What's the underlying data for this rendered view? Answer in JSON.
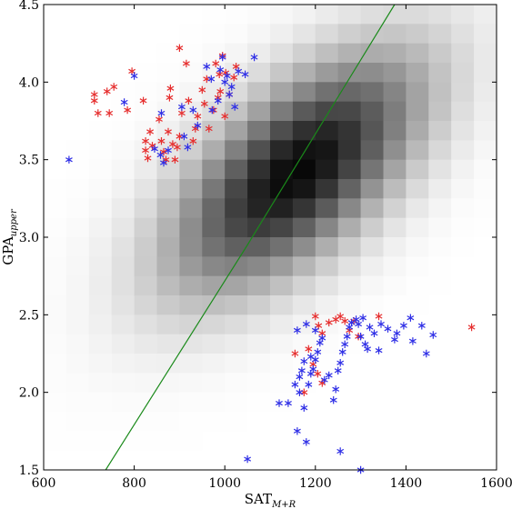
{
  "chart_data": {
    "type": "scatter",
    "title": "",
    "xlabel": {
      "main": "SAT",
      "sub": "M+R"
    },
    "ylabel": {
      "main": "GPA",
      "sub": "upper"
    },
    "xlim": [
      600,
      1600
    ],
    "ylim": [
      1.5,
      4.5
    ],
    "x_ticks": [
      600,
      800,
      1000,
      1200,
      1400,
      1600
    ],
    "y_ticks": [
      1.5,
      2.0,
      2.5,
      3.0,
      3.5,
      4.0,
      4.5
    ],
    "y_tick_labels": [
      "1.5",
      "2.0",
      "2.5",
      "3.0",
      "3.5",
      "4.0",
      "4.5"
    ],
    "grid": false,
    "background_density": {
      "type": "heatmap",
      "colormap": "greys",
      "center": [
        1160,
        3.42
      ],
      "spread": [
        175,
        0.48
      ],
      "correlation": 0.62,
      "x_bins": 20,
      "y_bins": 24
    },
    "line": {
      "color": "#1a8a1a",
      "points": [
        [
          737,
          1.5
        ],
        [
          1050,
          2.95
        ],
        [
          1375,
          4.5
        ]
      ]
    },
    "series": [
      {
        "color": "#e62e2e",
        "marker": "asterisk",
        "points": [
          [
            712,
            3.92
          ],
          [
            712,
            3.88
          ],
          [
            720,
            3.8
          ],
          [
            740,
            3.94
          ],
          [
            745,
            3.8
          ],
          [
            755,
            3.97
          ],
          [
            785,
            3.82
          ],
          [
            795,
            4.07
          ],
          [
            820,
            3.88
          ],
          [
            825,
            3.62
          ],
          [
            825,
            3.56
          ],
          [
            830,
            3.51
          ],
          [
            835,
            3.68
          ],
          [
            840,
            3.59
          ],
          [
            855,
            3.76
          ],
          [
            860,
            3.62
          ],
          [
            865,
            3.55
          ],
          [
            870,
            3.5
          ],
          [
            875,
            3.68
          ],
          [
            878,
            3.9
          ],
          [
            880,
            3.96
          ],
          [
            885,
            3.6
          ],
          [
            890,
            3.5
          ],
          [
            895,
            3.58
          ],
          [
            900,
            3.65
          ],
          [
            905,
            3.8
          ],
          [
            900,
            4.22
          ],
          [
            915,
            4.12
          ],
          [
            920,
            3.88
          ],
          [
            930,
            3.62
          ],
          [
            935,
            3.7
          ],
          [
            940,
            3.78
          ],
          [
            950,
            3.95
          ],
          [
            955,
            3.86
          ],
          [
            960,
            4.02
          ],
          [
            965,
            3.7
          ],
          [
            975,
            3.82
          ],
          [
            980,
            4.12
          ],
          [
            985,
            3.9
          ],
          [
            988,
            4.05
          ],
          [
            990,
            3.94
          ],
          [
            995,
            4.17
          ],
          [
            1000,
            3.78
          ],
          [
            1002,
            4.06
          ],
          [
            1010,
            3.92
          ],
          [
            1020,
            4.03
          ],
          [
            1025,
            4.1
          ],
          [
            1200,
            2.49
          ],
          [
            1207,
            2.43
          ],
          [
            1215,
            2.38
          ],
          [
            1230,
            2.45
          ],
          [
            1245,
            2.47
          ],
          [
            1255,
            2.49
          ],
          [
            1265,
            2.46
          ],
          [
            1275,
            2.4
          ],
          [
            1285,
            2.46
          ],
          [
            1295,
            2.36
          ],
          [
            1340,
            2.49
          ],
          [
            1545,
            2.42
          ],
          [
            1185,
            2.28
          ],
          [
            1195,
            2.18
          ],
          [
            1205,
            2.12
          ],
          [
            1215,
            2.06
          ],
          [
            1175,
            2.0
          ],
          [
            1155,
            2.25
          ]
        ]
      },
      {
        "color": "#2f2fe6",
        "marker": "asterisk",
        "points": [
          [
            656,
            3.5
          ],
          [
            778,
            3.87
          ],
          [
            800,
            4.04
          ],
          [
            845,
            3.57
          ],
          [
            858,
            3.53
          ],
          [
            860,
            3.8
          ],
          [
            865,
            3.48
          ],
          [
            875,
            3.56
          ],
          [
            905,
            3.84
          ],
          [
            910,
            3.65
          ],
          [
            918,
            3.58
          ],
          [
            930,
            3.82
          ],
          [
            940,
            3.72
          ],
          [
            960,
            4.1
          ],
          [
            970,
            4.02
          ],
          [
            972,
            3.82
          ],
          [
            985,
            3.88
          ],
          [
            990,
            4.08
          ],
          [
            995,
            4.16
          ],
          [
            1000,
            4.0
          ],
          [
            1005,
            4.04
          ],
          [
            1010,
            3.92
          ],
          [
            1015,
            3.97
          ],
          [
            1022,
            3.84
          ],
          [
            1030,
            4.07
          ],
          [
            1045,
            4.05
          ],
          [
            1065,
            4.16
          ],
          [
            1050,
            1.57
          ],
          [
            1120,
            1.93
          ],
          [
            1140,
            1.93
          ],
          [
            1155,
            2.05
          ],
          [
            1160,
            1.75
          ],
          [
            1165,
            2.1
          ],
          [
            1170,
            2.14
          ],
          [
            1175,
            2.2
          ],
          [
            1180,
            1.68
          ],
          [
            1165,
            2.0
          ],
          [
            1185,
            2.05
          ],
          [
            1190,
            2.12
          ],
          [
            1195,
            2.15
          ],
          [
            1200,
            2.21
          ],
          [
            1205,
            2.26
          ],
          [
            1210,
            2.32
          ],
          [
            1215,
            2.35
          ],
          [
            1220,
            2.08
          ],
          [
            1230,
            2.11
          ],
          [
            1240,
            1.95
          ],
          [
            1245,
            2.02
          ],
          [
            1250,
            2.14
          ],
          [
            1255,
            2.19
          ],
          [
            1260,
            2.26
          ],
          [
            1265,
            2.31
          ],
          [
            1270,
            2.36
          ],
          [
            1275,
            2.42
          ],
          [
            1280,
            2.45
          ],
          [
            1290,
            2.47
          ],
          [
            1295,
            2.44
          ],
          [
            1300,
            2.36
          ],
          [
            1305,
            2.48
          ],
          [
            1310,
            2.31
          ],
          [
            1315,
            2.28
          ],
          [
            1320,
            2.42
          ],
          [
            1330,
            2.38
          ],
          [
            1340,
            2.27
          ],
          [
            1345,
            2.44
          ],
          [
            1360,
            2.41
          ],
          [
            1375,
            2.34
          ],
          [
            1380,
            2.38
          ],
          [
            1395,
            2.43
          ],
          [
            1410,
            2.48
          ],
          [
            1415,
            2.33
          ],
          [
            1435,
            2.43
          ],
          [
            1445,
            2.25
          ],
          [
            1460,
            2.37
          ],
          [
            1255,
            1.62
          ],
          [
            1300,
            1.5
          ],
          [
            1190,
            2.23
          ],
          [
            1175,
            1.9
          ],
          [
            1160,
            2.4
          ],
          [
            1200,
            2.4
          ],
          [
            1180,
            2.44
          ]
        ]
      }
    ]
  }
}
